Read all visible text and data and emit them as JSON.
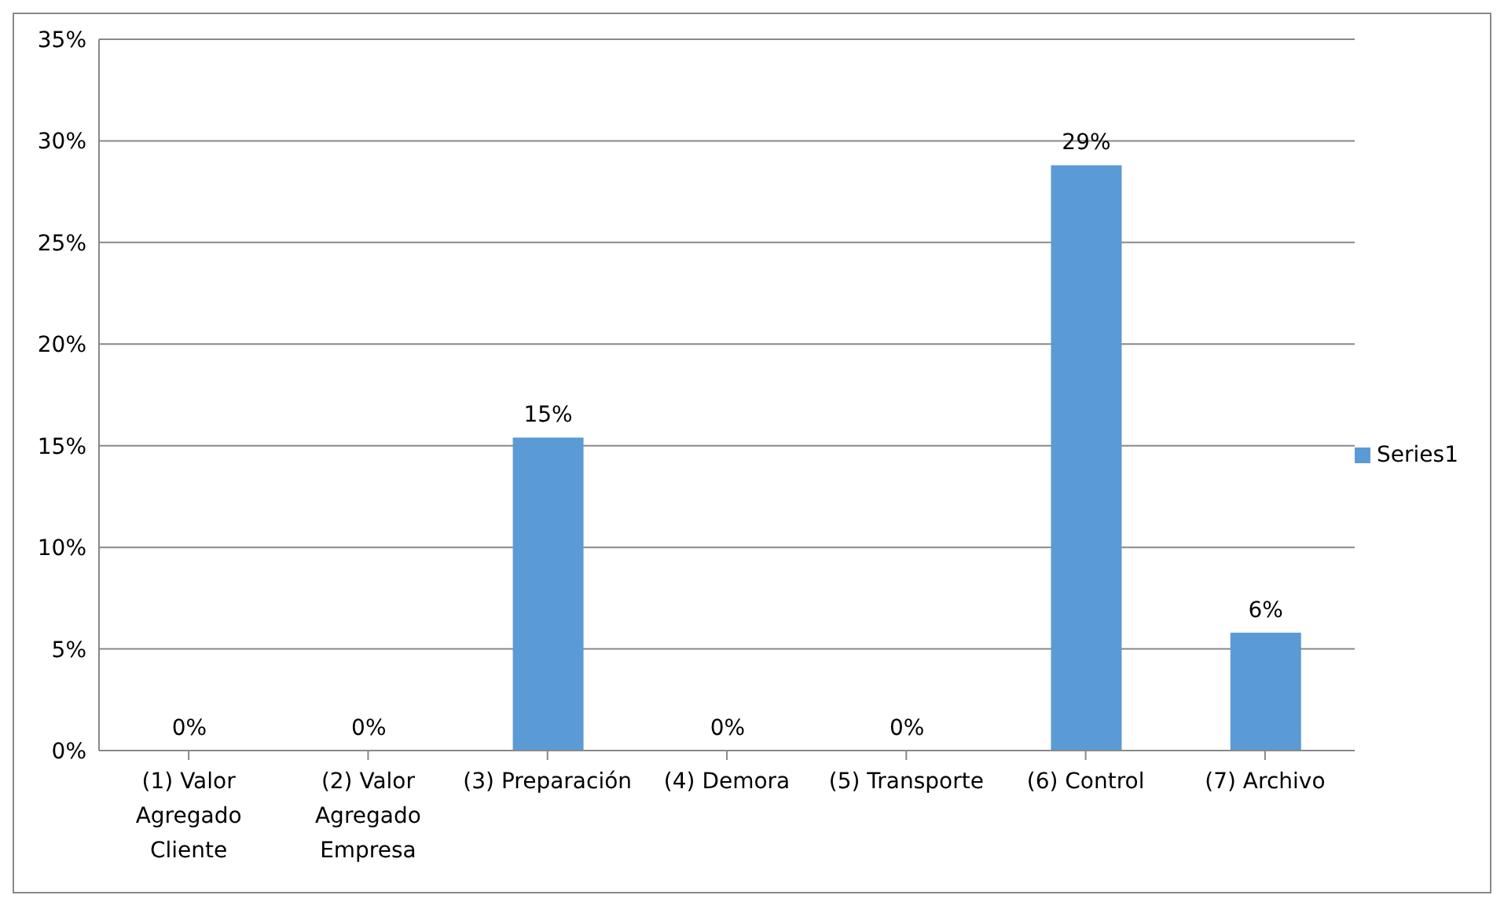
{
  "chart_data": {
    "type": "bar",
    "categories": [
      "(1) Valor Agregado Cliente",
      "(2) Valor Agregado Empresa",
      "(3) Preparación",
      "(4) Demora",
      "(5) Transporte",
      "(6) Control",
      "(7) Archivo"
    ],
    "series": [
      {
        "name": "Series1",
        "color": "#5b9bd5",
        "values": [
          0,
          0,
          15.4,
          0,
          0,
          28.8,
          5.8
        ],
        "value_labels": [
          "0%",
          "0%",
          "15%",
          "0%",
          "0%",
          "29%",
          "6%"
        ]
      }
    ],
    "ylim": [
      0,
      35
    ],
    "yticks": [
      {
        "value": 0,
        "label": "0%"
      },
      {
        "value": 5,
        "label": "5%"
      },
      {
        "value": 10,
        "label": "10%"
      },
      {
        "value": 15,
        "label": "15%"
      },
      {
        "value": 20,
        "label": "20%"
      },
      {
        "value": 25,
        "label": "25%"
      },
      {
        "value": 30,
        "label": "30%"
      },
      {
        "value": 35,
        "label": "35%"
      }
    ],
    "grid": "y",
    "legend": "right"
  }
}
